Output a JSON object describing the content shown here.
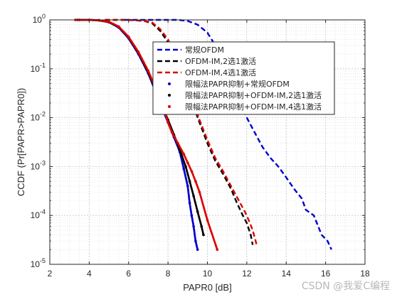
{
  "chart_data": {
    "type": "line",
    "title": "",
    "xlabel": "PAPR0 [dB]",
    "ylabel": "CCDF (Pr[PAPR>PAPR0])",
    "xlim": [
      2,
      18
    ],
    "ylim": [
      1e-05,
      1
    ],
    "yscale": "log",
    "xticks": [
      "2",
      "4",
      "6",
      "8",
      "10",
      "12",
      "14",
      "16",
      "18"
    ],
    "yticks": [
      "10^-5",
      "10^-4",
      "10^-3",
      "10^-2",
      "10^-1",
      "10^0"
    ],
    "grid": true,
    "minor_grid": true,
    "legend_position": "top-right",
    "series": [
      {
        "name": "常规OFDM",
        "color": "#0000cc",
        "style": "dashed",
        "x": [
          5.8,
          7.5,
          8.5,
          9.0,
          9.5,
          10.0,
          10.4,
          10.8,
          11.2,
          11.6,
          12.0,
          12.4,
          12.8,
          13.2,
          13.6,
          14.0,
          14.4,
          14.8,
          15.0,
          15.4,
          15.8,
          16.1,
          16.3
        ],
        "y": [
          1,
          1,
          1,
          0.95,
          0.8,
          0.55,
          0.3,
          0.14,
          0.06,
          0.025,
          0.01,
          0.005,
          0.0025,
          0.0015,
          0.001,
          0.0006,
          0.00035,
          0.00022,
          0.00013,
          0.0001,
          4e-05,
          3e-05,
          2e-05
        ]
      },
      {
        "name": "OFDM-IM,2选1激活",
        "color": "#000000",
        "style": "dashed",
        "x": [
          4.8,
          6.0,
          6.8,
          7.2,
          7.6,
          8.0,
          8.4,
          8.8,
          9.2,
          9.6,
          10.0,
          10.4,
          10.8,
          11.2,
          11.5,
          11.8,
          12.0,
          12.2,
          12.3
        ],
        "y": [
          1,
          1,
          0.95,
          0.85,
          0.6,
          0.35,
          0.15,
          0.06,
          0.022,
          0.008,
          0.003,
          0.0013,
          0.0007,
          0.00035,
          0.00018,
          0.0001,
          7e-05,
          4e-05,
          2.5e-05
        ]
      },
      {
        "name": "OFDM-IM,4选1激活",
        "color": "#dd0000",
        "style": "dashed",
        "x": [
          4.8,
          6.0,
          6.8,
          7.2,
          7.6,
          8.0,
          8.4,
          8.8,
          9.2,
          9.6,
          10.0,
          10.4,
          10.8,
          11.2,
          11.6,
          11.9,
          12.1,
          12.3,
          12.5
        ],
        "y": [
          1,
          1,
          0.95,
          0.88,
          0.65,
          0.4,
          0.18,
          0.07,
          0.025,
          0.009,
          0.0035,
          0.0015,
          0.0008,
          0.0004,
          0.0002,
          0.00012,
          8e-05,
          5e-05,
          2.5e-05
        ]
      },
      {
        "name": "限幅法PAPR抑制+常规OFDM",
        "color": "#0000cc",
        "style": "dotted",
        "x": [
          3.4,
          4.0,
          4.5,
          5.0,
          5.5,
          6.0,
          6.5,
          7.0,
          7.5,
          8.0,
          8.3,
          8.6,
          8.8,
          9.0,
          9.1,
          9.2,
          9.3,
          9.4,
          9.5
        ],
        "y": [
          1,
          1,
          0.98,
          0.9,
          0.7,
          0.42,
          0.2,
          0.08,
          0.025,
          0.008,
          0.004,
          0.002,
          0.0009,
          0.0004,
          0.00018,
          0.0001,
          6e-05,
          3e-05,
          2e-05
        ]
      },
      {
        "name": "限幅法PAPR抑制+OFDM-IM,2选1激活",
        "color": "#000000",
        "style": "dotted",
        "x": [
          3.5,
          4.0,
          4.5,
          5.0,
          5.5,
          6.0,
          6.5,
          7.0,
          7.5,
          8.0,
          8.3,
          8.6,
          8.9,
          9.1,
          9.3,
          9.5,
          9.7,
          9.8
        ],
        "y": [
          1,
          1,
          0.98,
          0.9,
          0.72,
          0.44,
          0.21,
          0.085,
          0.028,
          0.009,
          0.0045,
          0.0022,
          0.001,
          0.0005,
          0.00025,
          0.00012,
          6e-05,
          4e-05
        ]
      },
      {
        "name": "限幅法PAPR抑制+OFDM-IM,4选1激活",
        "color": "#dd0000",
        "style": "dotted",
        "x": [
          3.3,
          4.0,
          4.5,
          5.0,
          5.5,
          6.0,
          6.5,
          7.0,
          7.5,
          7.8,
          8.0,
          8.2,
          8.5,
          8.8,
          9.0,
          9.2,
          9.4,
          9.6,
          10.0,
          10.5
        ],
        "y": [
          1,
          1,
          0.98,
          0.92,
          0.73,
          0.45,
          0.22,
          0.09,
          0.03,
          0.015,
          0.008,
          0.005,
          0.003,
          0.0018,
          0.0012,
          0.0008,
          0.0005,
          0.0003,
          8e-05,
          2e-05
        ]
      }
    ]
  },
  "watermark": "CSDN @我爱C编程"
}
